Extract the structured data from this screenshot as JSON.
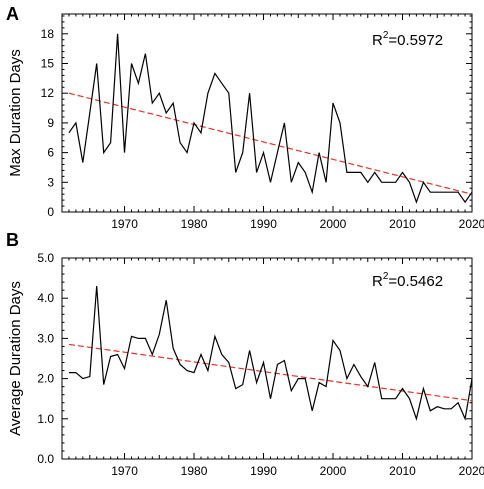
{
  "chart_data": [
    {
      "type": "line",
      "panel_label": "A",
      "ylabel": "Max Duration Days",
      "r2_prefix": "R",
      "r2_sup": "2",
      "r2_value": "=0.5972",
      "xlim": [
        1961,
        2020
      ],
      "ylim": [
        0,
        20
      ],
      "xticks": [
        1970,
        1980,
        1990,
        2000,
        2010,
        2020
      ],
      "yticks": [
        0,
        3,
        6,
        9,
        12,
        15,
        18
      ],
      "x": [
        1962,
        1963,
        1964,
        1965,
        1966,
        1967,
        1968,
        1969,
        1970,
        1971,
        1972,
        1973,
        1974,
        1975,
        1976,
        1977,
        1978,
        1979,
        1980,
        1981,
        1982,
        1983,
        1984,
        1985,
        1986,
        1987,
        1988,
        1989,
        1990,
        1991,
        1992,
        1993,
        1994,
        1995,
        1996,
        1997,
        1998,
        1999,
        2000,
        2001,
        2002,
        2003,
        2004,
        2005,
        2006,
        2007,
        2008,
        2009,
        2010,
        2011,
        2012,
        2013,
        2014,
        2015,
        2016,
        2017,
        2018,
        2019,
        2020
      ],
      "values": [
        8,
        9,
        5,
        10,
        15,
        6,
        7,
        18,
        6,
        15,
        13,
        16,
        11,
        12,
        10,
        11,
        7,
        6,
        9,
        8,
        12,
        14,
        13,
        12,
        4,
        6,
        12,
        4,
        6,
        3,
        6,
        9,
        3,
        5,
        4,
        2,
        6,
        3,
        11,
        9,
        4,
        4,
        4,
        3,
        4,
        3,
        3,
        3,
        4,
        3,
        1,
        3,
        2,
        2,
        2,
        2,
        2,
        1,
        2
      ],
      "trend": {
        "x": [
          1962,
          2020
        ],
        "y": [
          12.0,
          1.8
        ]
      }
    },
    {
      "type": "line",
      "panel_label": "B",
      "ylabel": "Average Duration Days",
      "r2_prefix": "R",
      "r2_sup": "2",
      "r2_value": "=0.5462",
      "xlim": [
        1961,
        2020
      ],
      "ylim": [
        0,
        5
      ],
      "xticks": [
        1970,
        1980,
        1990,
        2000,
        2010,
        2020
      ],
      "yticks": [
        0,
        1,
        2,
        3,
        4,
        5
      ],
      "ytick_labels": [
        "0.0",
        "1.0",
        "2.0",
        "3.0",
        "4.0",
        "5.0"
      ],
      "x": [
        1962,
        1963,
        1964,
        1965,
        1966,
        1967,
        1968,
        1969,
        1970,
        1971,
        1972,
        1973,
        1974,
        1975,
        1976,
        1977,
        1978,
        1979,
        1980,
        1981,
        1982,
        1983,
        1984,
        1985,
        1986,
        1987,
        1988,
        1989,
        1990,
        1991,
        1992,
        1993,
        1994,
        1995,
        1996,
        1997,
        1998,
        1999,
        2000,
        2001,
        2002,
        2003,
        2004,
        2005,
        2006,
        2007,
        2008,
        2009,
        2010,
        2011,
        2012,
        2013,
        2014,
        2015,
        2016,
        2017,
        2018,
        2019,
        2020
      ],
      "values": [
        2.15,
        2.15,
        2.0,
        2.05,
        4.3,
        1.85,
        2.55,
        2.6,
        2.25,
        3.05,
        3.0,
        3.0,
        2.6,
        3.1,
        3.95,
        2.75,
        2.35,
        2.2,
        2.15,
        2.6,
        2.2,
        3.05,
        2.6,
        2.4,
        1.75,
        1.85,
        2.7,
        1.9,
        2.4,
        1.5,
        2.35,
        2.45,
        1.7,
        2.0,
        2.0,
        1.2,
        1.9,
        1.8,
        2.95,
        2.7,
        2.0,
        2.35,
        2.05,
        1.8,
        2.4,
        1.5,
        1.5,
        1.5,
        1.75,
        1.5,
        1.0,
        1.75,
        1.2,
        1.3,
        1.25,
        1.25,
        1.4,
        1.0,
        2.0
      ],
      "trend": {
        "x": [
          1962,
          2020
        ],
        "y": [
          2.85,
          1.45
        ]
      }
    }
  ]
}
